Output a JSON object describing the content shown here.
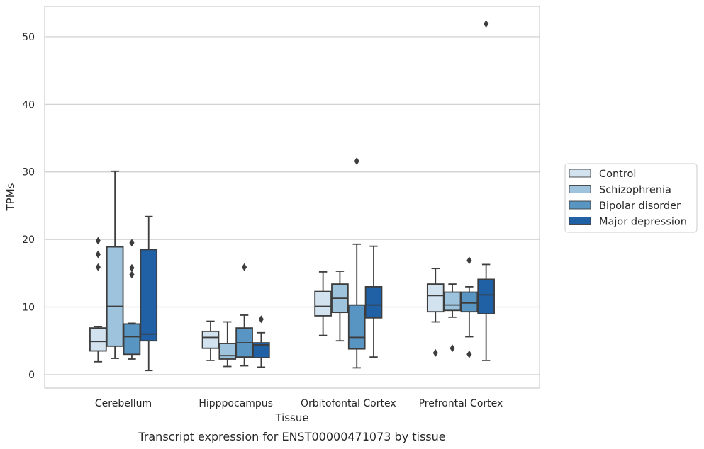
{
  "chart_data": {
    "type": "box",
    "title": "",
    "caption": "Transcript expression for ENST00000471073 by tissue",
    "xlabel": "Tissue",
    "ylabel": "TPMs",
    "ylim": [
      -2,
      54.5
    ],
    "yticks": [
      0,
      10,
      20,
      30,
      40,
      50
    ],
    "grid": "horizontal",
    "legend_position": "right",
    "categories": [
      "Cerebellum",
      "Hipppocampus",
      "Orbitofontal Cortex",
      "Prefrontal Cortex"
    ],
    "series": [
      {
        "name": "Control",
        "color": "#d3e2ef",
        "boxes": [
          {
            "whislo": 1.9,
            "q1": 3.5,
            "med": 4.9,
            "q3": 6.9,
            "whishi": 7.1,
            "fliers": [
              15.9,
              17.8,
              19.8
            ]
          },
          {
            "whislo": 2.1,
            "q1": 3.9,
            "med": 5.5,
            "q3": 6.4,
            "whishi": 7.9,
            "fliers": []
          },
          {
            "whislo": 5.8,
            "q1": 8.7,
            "med": 10.1,
            "q3": 12.3,
            "whishi": 15.2,
            "fliers": []
          },
          {
            "whislo": 7.8,
            "q1": 9.3,
            "med": 11.7,
            "q3": 13.4,
            "whishi": 15.7,
            "fliers": [
              3.2
            ]
          }
        ]
      },
      {
        "name": "Schizophrenia",
        "color": "#9dc3dd",
        "boxes": [
          {
            "whislo": 2.4,
            "q1": 4.2,
            "med": 10.1,
            "q3": 18.9,
            "whishi": 30.1,
            "fliers": []
          },
          {
            "whislo": 1.2,
            "q1": 2.3,
            "med": 2.8,
            "q3": 4.6,
            "whishi": 7.8,
            "fliers": []
          },
          {
            "whislo": 5.0,
            "q1": 9.2,
            "med": 11.3,
            "q3": 13.4,
            "whishi": 15.3,
            "fliers": []
          },
          {
            "whislo": 8.5,
            "q1": 9.5,
            "med": 10.3,
            "q3": 12.2,
            "whishi": 13.4,
            "fliers": [
              3.9
            ]
          }
        ]
      },
      {
        "name": "Bipolar disorder",
        "color": "#5895c2",
        "boxes": [
          {
            "whislo": 2.3,
            "q1": 3.0,
            "med": 5.6,
            "q3": 7.5,
            "whishi": 7.6,
            "fliers": [
              14.8,
              15.8,
              19.5
            ]
          },
          {
            "whislo": 1.3,
            "q1": 2.6,
            "med": 4.7,
            "q3": 6.9,
            "whishi": 8.8,
            "fliers": [
              15.9
            ]
          },
          {
            "whislo": 1.0,
            "q1": 3.8,
            "med": 5.5,
            "q3": 10.3,
            "whishi": 19.3,
            "fliers": [
              31.6
            ]
          },
          {
            "whislo": 5.6,
            "q1": 9.3,
            "med": 10.6,
            "q3": 12.2,
            "whishi": 13.0,
            "fliers": [
              3.0,
              16.9
            ]
          }
        ]
      },
      {
        "name": "Major depression",
        "color": "#2060a5",
        "boxes": [
          {
            "whislo": 0.6,
            "q1": 5.0,
            "med": 6.0,
            "q3": 18.5,
            "whishi": 23.4,
            "fliers": []
          },
          {
            "whislo": 1.1,
            "q1": 2.5,
            "med": 4.4,
            "q3": 4.7,
            "whishi": 6.2,
            "fliers": [
              8.2
            ]
          },
          {
            "whislo": 2.6,
            "q1": 8.4,
            "med": 10.3,
            "q3": 13.0,
            "whishi": 19.0,
            "fliers": []
          },
          {
            "whislo": 2.1,
            "q1": 9.0,
            "med": 11.8,
            "q3": 14.1,
            "whishi": 16.3,
            "fliers": [
              51.9
            ]
          }
        ]
      }
    ]
  }
}
